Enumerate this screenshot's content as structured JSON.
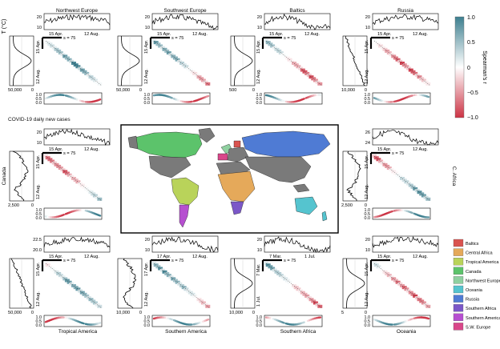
{
  "figure": {
    "regions": {
      "nw_europe": "Northwest Europe",
      "sw_europe": "Southwest Europe",
      "baltics": "Baltics",
      "russia": "Russia",
      "canada": "Canada",
      "c_africa": "C. Africa",
      "tropical_america": "Tropical America",
      "southern_america": "Southern America",
      "southern_africa": "Southern Africa",
      "oceania": "Oceania"
    },
    "axis_labels": {
      "temp": "T (°C)",
      "cases": "COVID-19 daily new cases",
      "spearman": "Spearman's r"
    },
    "s_label": "s = 75",
    "colorbar": {
      "ticks": [
        "1.0",
        "0.5",
        "0",
        "−0.5",
        "−1.0"
      ],
      "positive_color": "#3d7f8f",
      "negative_color": "#cc3344"
    },
    "legend": {
      "items": [
        {
          "label": "Baltics",
          "color": "#d9534f"
        },
        {
          "label": "Central Africa",
          "color": "#e5a95a"
        },
        {
          "label": "Tropical America",
          "color": "#b9d35a"
        },
        {
          "label": "Canada",
          "color": "#5cc36b"
        },
        {
          "label": "Northwest Europe",
          "color": "#8fd0a0"
        },
        {
          "label": "Oceania",
          "color": "#55c4cf"
        },
        {
          "label": "Russia",
          "color": "#4f7bd4"
        },
        {
          "label": "Southern Africa",
          "color": "#7b57c8"
        },
        {
          "label": "Southern America",
          "color": "#b64fd0"
        },
        {
          "label": "S.W. Europe",
          "color": "#d9478a"
        }
      ]
    },
    "panels": {
      "nw": {
        "y_ticks": [
          "20",
          "10"
        ],
        "date_start": "15 Apr.",
        "date_end": "12 Aug.",
        "case_tick": "50,000",
        "zero": "0",
        "r_ticks": [
          "1.0",
          "0.5",
          "0.0"
        ]
      },
      "swe": {
        "y_ticks": [
          "20",
          "10"
        ],
        "date_start": "15 Apr.",
        "date_end": "12 Aug.",
        "case_tick": "50,000",
        "zero": "0",
        "r_ticks": [
          "1.0",
          "0.5",
          "0.0"
        ]
      },
      "balt": {
        "y_ticks": [
          "20",
          "10"
        ],
        "date_start": "15 Apr.",
        "date_end": "12 Aug.",
        "case_tick": "500",
        "zero": "0",
        "r_ticks": [
          "1.0",
          "0.5",
          "0.0"
        ]
      },
      "rus": {
        "y_ticks": [
          "20",
          "10"
        ],
        "date_start": "15 Apr.",
        "date_end": "12 Aug.",
        "case_tick": "10,000",
        "zero": "0",
        "r_ticks": [
          "1.0",
          "0.5",
          "0.0"
        ]
      },
      "can": {
        "y_ticks": [
          "20",
          "10"
        ],
        "date_start": "15 Apr.",
        "date_end": "12 Aug.",
        "case_tick": "2,500",
        "zero": "0",
        "r_ticks": [
          "1.0",
          "0.5",
          "0.0"
        ]
      },
      "caf": {
        "y_ticks": [
          "26",
          "24"
        ],
        "date_start": "15 Apr.",
        "date_end": "12 Aug.",
        "case_tick": "2,500",
        "zero": "0",
        "r_ticks": [
          "1.0",
          "0.5",
          "0.0"
        ]
      },
      "ta": {
        "y_ticks": [
          "22.5",
          "20.0"
        ],
        "date_start": "15 Apr.",
        "date_end": "12 Aug.",
        "case_tick": "50,000",
        "zero": "0",
        "r_ticks": [
          "1.0",
          "0.5",
          "0.0"
        ]
      },
      "sa": {
        "y_ticks": [
          "20",
          "10"
        ],
        "date_start": "17 Apr.",
        "date_end": "12 Aug.",
        "case_tick": "10,000",
        "zero": "0",
        "r_ticks": [
          "1.0",
          "0.5",
          "0.0"
        ]
      },
      "saf": {
        "y_ticks": [
          "20",
          "10"
        ],
        "date_start": "7 Mar.",
        "date_end": "1 Jul.",
        "case_tick": "10,000",
        "zero": "0",
        "r_ticks": [
          "1.0",
          "0.5",
          "0.0"
        ]
      },
      "oce": {
        "y_ticks": [
          "20",
          "10"
        ],
        "date_start": "15 Apr.",
        "date_end": "12 Aug.",
        "case_tick": "5",
        "zero": "0",
        "r_ticks": [
          "1.0",
          "0.5",
          "0.0"
        ]
      }
    }
  }
}
